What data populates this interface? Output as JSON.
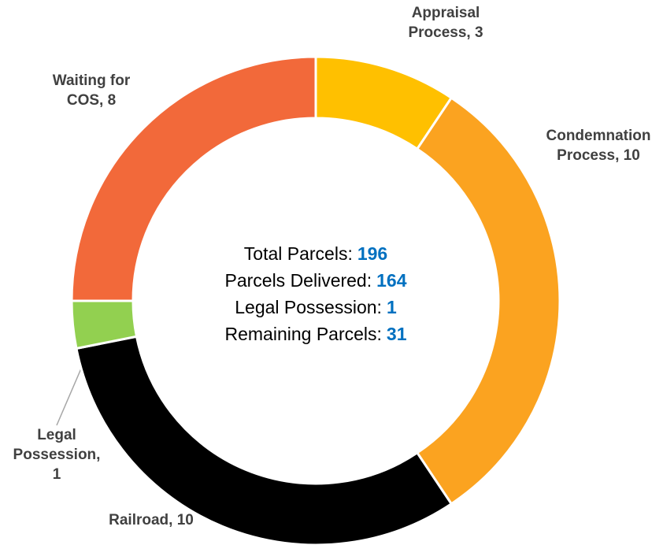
{
  "chart_data": {
    "type": "donut",
    "categories": [
      "Appraisal Process",
      "Condemnation Process",
      "Railroad",
      "Legal Possession",
      "Waiting for COS"
    ],
    "values": [
      3,
      10,
      10,
      1,
      8
    ],
    "value_labels": [
      "Appraisal\nProcess, 3",
      "Condemnation\nProcess, 10",
      "Railroad, 10",
      "Legal\nPossession,\n1",
      "Waiting for\nCOS, 8"
    ],
    "colors": [
      "#FFC000",
      "#FBA320",
      "#000000",
      "#92D050",
      "#F2693A"
    ],
    "center_text": [
      {
        "label": "Total Parcels:",
        "value": 196
      },
      {
        "label": "Parcels Delivered:",
        "value": 164
      },
      {
        "label": "Legal Possession:",
        "value": 1
      },
      {
        "label": "Remaining Parcels:",
        "value": 31
      }
    ]
  }
}
